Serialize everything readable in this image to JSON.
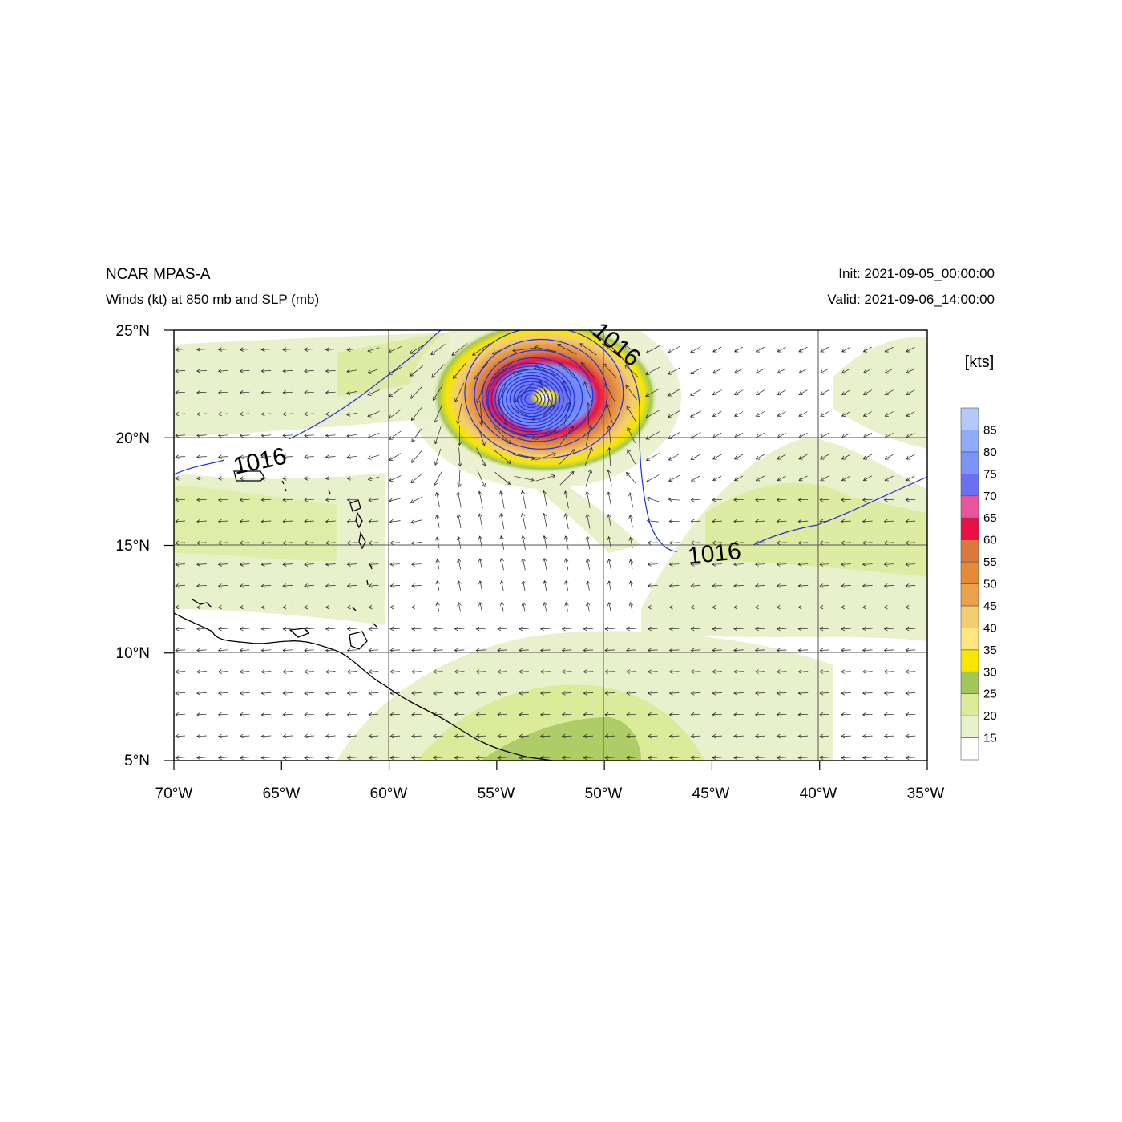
{
  "header": {
    "title": "NCAR MPAS-A",
    "subtitle": "Winds (kt) at 850 mb and SLP (mb)",
    "init": "Init: 2021-09-05_00:00:00",
    "valid": "Valid: 2021-09-06_14:00:00"
  },
  "map": {
    "lon_range": [
      -70,
      -35
    ],
    "lat_range": [
      5,
      25
    ],
    "lon_ticks": [
      "70°W",
      "65°W",
      "60°W",
      "55°W",
      "50°W",
      "45°W",
      "40°W",
      "35°W"
    ],
    "lat_ticks": [
      "25°N",
      "20°N",
      "15°N",
      "10°N",
      "5°N"
    ],
    "storm_center": {
      "lon": -53.4,
      "lat": 21.8
    },
    "isobar_label": "1016",
    "isobar_labels": [
      "1016",
      "1016",
      "1016"
    ]
  },
  "colorbar": {
    "title": "[kts]",
    "levels": [
      "15",
      "20",
      "25",
      "30",
      "35",
      "40",
      "45",
      "50",
      "55",
      "60",
      "65",
      "70",
      "75",
      "80",
      "85"
    ],
    "colors": [
      "#ffffff",
      "#e9f0cc",
      "#dbeb99",
      "#a3c65a",
      "#f7e700",
      "#fbe77e",
      "#f3cd74",
      "#eaa04d",
      "#e68a3a",
      "#d9783c",
      "#ec0f45",
      "#e9559a",
      "#6b6ff2",
      "#7b94f8",
      "#90abf8",
      "#b6c8f8"
    ]
  }
}
